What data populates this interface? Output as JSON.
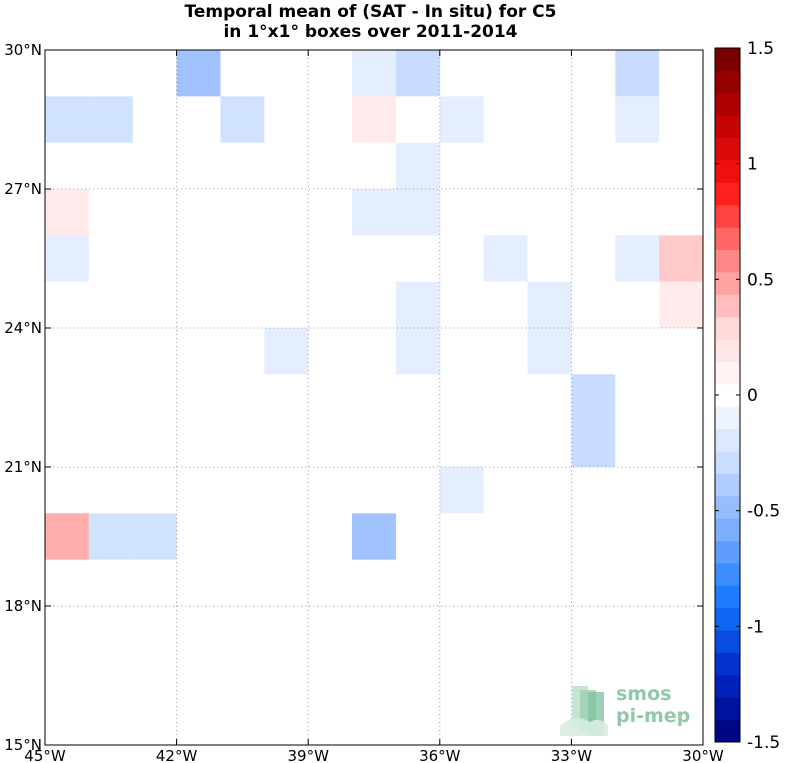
{
  "chart_data": {
    "type": "heatmap",
    "title_lines": [
      "Temporal mean of (SAT - In situ) for C5",
      "in 1°x1° boxes over 2011-2014"
    ],
    "x_range": [
      -45,
      -30
    ],
    "y_range": [
      15,
      30
    ],
    "x_ticks": [
      -45,
      -42,
      -39,
      -36,
      -33,
      -30
    ],
    "x_tick_labels": [
      "45°W",
      "42°W",
      "39°W",
      "36°W",
      "33°W",
      "30°W"
    ],
    "y_ticks": [
      15,
      18,
      21,
      24,
      27,
      30
    ],
    "y_tick_labels": [
      "15°N",
      "18°N",
      "21°N",
      "24°N",
      "27°N",
      "30°N"
    ],
    "grid": true,
    "cell_size_deg": 1,
    "cells": [
      {
        "lon": -42,
        "lat": 29,
        "value": -0.45
      },
      {
        "lon": -38,
        "lat": 29,
        "value": -0.15
      },
      {
        "lon": -37,
        "lat": 29,
        "value": -0.3
      },
      {
        "lon": -32,
        "lat": 29,
        "value": -0.3
      },
      {
        "lon": -45,
        "lat": 28,
        "value": -0.25
      },
      {
        "lon": -44,
        "lat": 28,
        "value": -0.25
      },
      {
        "lon": -41,
        "lat": 28,
        "value": -0.25
      },
      {
        "lon": -38,
        "lat": 28,
        "value": 0.15
      },
      {
        "lon": -36,
        "lat": 28,
        "value": -0.15
      },
      {
        "lon": -32,
        "lat": 28,
        "value": -0.15
      },
      {
        "lon": -37,
        "lat": 27,
        "value": -0.15
      },
      {
        "lon": -45,
        "lat": 26,
        "value": 0.15
      },
      {
        "lon": -38,
        "lat": 26,
        "value": -0.15
      },
      {
        "lon": -37,
        "lat": 26,
        "value": -0.15
      },
      {
        "lon": -45,
        "lat": 25,
        "value": -0.15
      },
      {
        "lon": -35,
        "lat": 25,
        "value": -0.15
      },
      {
        "lon": -32,
        "lat": 25,
        "value": -0.15
      },
      {
        "lon": -31,
        "lat": 25,
        "value": 0.35
      },
      {
        "lon": -37,
        "lat": 24,
        "value": -0.15
      },
      {
        "lon": -34,
        "lat": 24,
        "value": -0.15
      },
      {
        "lon": -31,
        "lat": 24,
        "value": 0.15
      },
      {
        "lon": -40,
        "lat": 23,
        "value": -0.15
      },
      {
        "lon": -37,
        "lat": 23,
        "value": -0.15
      },
      {
        "lon": -34,
        "lat": 23,
        "value": -0.15
      },
      {
        "lon": -33,
        "lat": 22,
        "value": -0.3
      },
      {
        "lon": -33,
        "lat": 21,
        "value": -0.3
      },
      {
        "lon": -36,
        "lat": 20,
        "value": -0.15
      },
      {
        "lon": -45,
        "lat": 19,
        "value": 0.45
      },
      {
        "lon": -44,
        "lat": 19,
        "value": -0.25
      },
      {
        "lon": -43,
        "lat": 19,
        "value": -0.25
      },
      {
        "lon": -38,
        "lat": 19,
        "value": -0.45
      }
    ],
    "colorbar": {
      "range": [
        -1.5,
        1.5
      ],
      "tick_values": [
        1.5,
        1,
        0.5,
        0,
        -0.5,
        -1,
        -1.5
      ],
      "tick_labels": [
        "1.5",
        "1",
        "0.5",
        "0",
        "-0.5",
        "-1",
        "-1.5"
      ]
    }
  },
  "logo": {
    "line1": "smos",
    "line2": "pi-mep"
  }
}
